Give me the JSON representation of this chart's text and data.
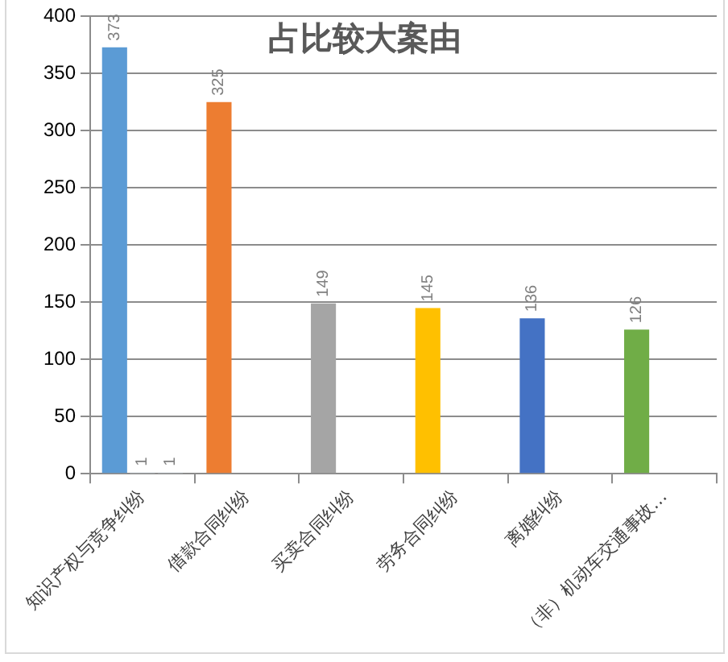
{
  "chart_data": {
    "type": "bar",
    "title": "占比较大案由",
    "categories": [
      "知识产权与竞争纠纷",
      "借款合同纠纷",
      "买卖合同纠纷",
      "劳务合同纠纷",
      "离婚纠纷",
      "（非）机动车交通事故…"
    ],
    "series": [
      {
        "colors": [
          "#5b9bd5",
          "#ed7d31",
          "#a5a5a5",
          "#ffc000",
          "#4472c4",
          "#70ad47"
        ],
        "values": [
          373,
          325,
          149,
          145,
          136,
          126
        ]
      },
      {
        "color": "#d6e2f0",
        "values": [
          1,
          null,
          null,
          null,
          null,
          null
        ]
      },
      {
        "color": "#d6e2f0",
        "values": [
          1,
          null,
          null,
          null,
          null,
          null
        ]
      }
    ],
    "ylim": [
      0,
      400
    ],
    "yticks": [
      0,
      50,
      100,
      150,
      200,
      250,
      300,
      350,
      400
    ],
    "grid": "y",
    "legend": false,
    "data_labels": true
  }
}
